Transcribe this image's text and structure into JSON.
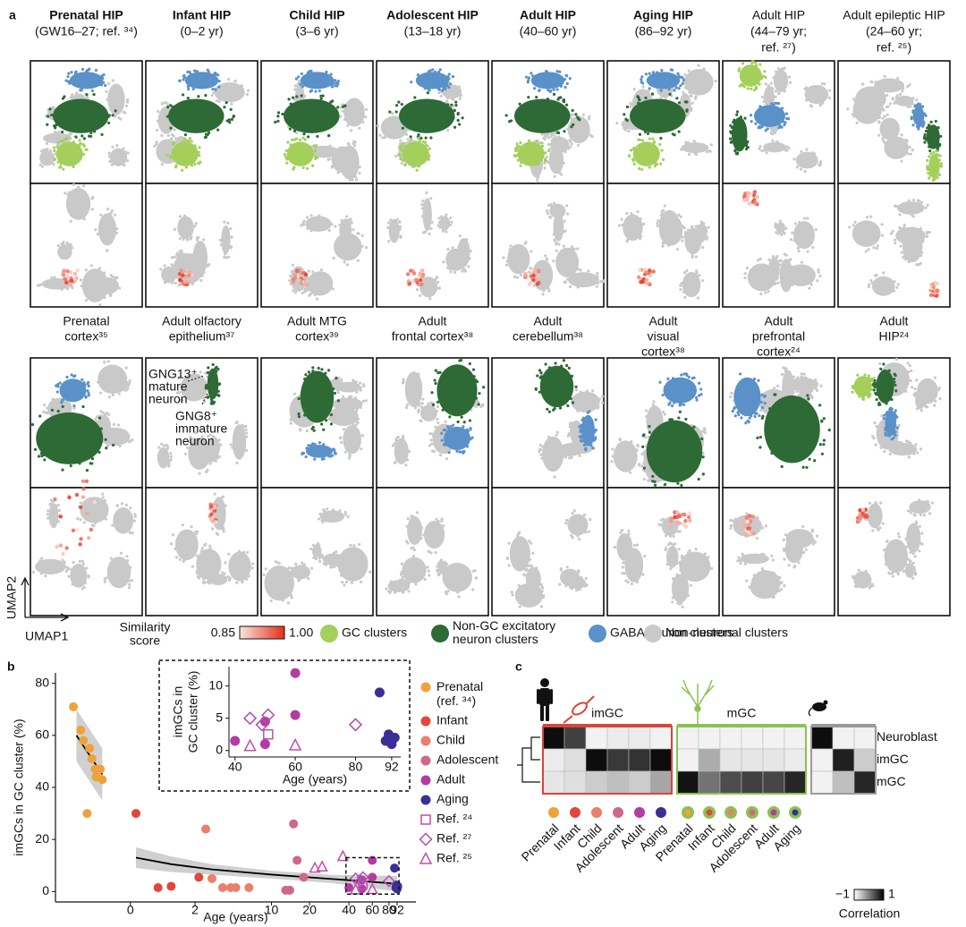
{
  "panel_labels": [
    "a",
    "b",
    "c"
  ],
  "panel_a": {
    "top_titles": [
      {
        "lines": [
          "Prenatal HIP",
          "(GW16–27; ref. ³⁴)"
        ],
        "bold": true
      },
      {
        "lines": [
          "Infant HIP",
          "(0–2 yr)"
        ],
        "bold": true
      },
      {
        "lines": [
          "Child HIP",
          "(3–6 yr)"
        ],
        "bold": true
      },
      {
        "lines": [
          "Adolescent HIP",
          "(13–18 yr)"
        ],
        "bold": true
      },
      {
        "lines": [
          "Adult HIP",
          "(40–60 yr)"
        ],
        "bold": true
      },
      {
        "lines": [
          "Aging HIP",
          "(86–92 yr)"
        ],
        "bold": true
      },
      {
        "lines": [
          "Adult HIP",
          "(44–79 yr;",
          "ref. ²⁷)"
        ],
        "bold": false
      },
      {
        "lines": [
          "Adult epileptic HIP",
          "(24–60 yr;",
          "ref. ²⁵)"
        ],
        "bold": false
      }
    ],
    "mid_titles": [
      {
        "lines": [
          "Prenatal",
          "cortex³⁵"
        ]
      },
      {
        "lines": [
          "Adult olfactory",
          "epithelium³⁷"
        ]
      },
      {
        "lines": [
          "Adult MTG",
          "cortex³⁹"
        ]
      },
      {
        "lines": [
          "Adult",
          "frontal cortex³⁸"
        ]
      },
      {
        "lines": [
          "Adult",
          "cerebellum³⁸"
        ]
      },
      {
        "lines": [
          "Adult",
          "visual",
          "cortex³⁸"
        ]
      },
      {
        "lines": [
          "Adult",
          "prefrontal",
          "cortex²⁴"
        ]
      },
      {
        "lines": [
          "Adult",
          "HIP²⁴"
        ]
      }
    ],
    "annotations": [
      {
        "lines": [
          "GNG13⁺",
          "mature",
          "neuron"
        ]
      },
      {
        "lines": [
          "GNG8⁺",
          "immature",
          "neuron"
        ]
      }
    ],
    "axis_labels": [
      "UMAP1",
      "UMAP2"
    ],
    "similarity_legend": {
      "title_lines": [
        "Similarity",
        "score"
      ],
      "min": 0.85,
      "max": {
        "value": 1,
        "label": "1.00"
      },
      "colors": [
        "#fbe4dc",
        "#e3301a"
      ]
    },
    "cluster_legend": [
      {
        "label_lines": [
          "GC clusters"
        ],
        "color": "#a4cf5b"
      },
      {
        "label_lines": [
          "Non-GC excitatory",
          "neuron clusters"
        ],
        "color": "#2d6a35"
      },
      {
        "label_lines": [
          "GABA neuron clusters"
        ],
        "color": "#5a91c9"
      },
      {
        "label_lines": [
          "Non-neuronal clusters"
        ],
        "color": "#c9c9c9"
      }
    ]
  },
  "chart_data": [
    {
      "type": "scatter",
      "xlabel": "Age (years)",
      "ylabel": "imGCs in GC cluster (%)",
      "xscale": "log1p",
      "xlim": [
        -0.72,
        127
      ],
      "xticks": [
        0,
        2,
        10,
        20,
        40,
        60,
        80,
        92
      ],
      "ylim": [
        -4,
        84
      ],
      "yticks": [
        0,
        20,
        40,
        60,
        80
      ],
      "series": [
        {
          "name": "Prenatal (ref. ³⁴)",
          "color": "#f0a13a",
          "marker": "circle",
          "x": [
            -0.62,
            -0.57,
            -0.55,
            -0.5,
            -0.48,
            -0.45,
            -0.44,
            -0.4,
            -0.38,
            -0.52
          ],
          "values": [
            71,
            62,
            58,
            55,
            51,
            47,
            44,
            47,
            43,
            30
          ]
        },
        {
          "name": "Infant",
          "color": "#e3453a",
          "marker": "circle",
          "x": [
            0.1,
            0.6,
            1,
            2.2
          ],
          "values": [
            30,
            1.5,
            2,
            5.5
          ]
        },
        {
          "name": "Child",
          "color": "#ea7f6b",
          "marker": "circle",
          "x": [
            2.6,
            3,
            3.8,
            4.5,
            5,
            6.5
          ],
          "values": [
            24,
            5,
            1.5,
            1.5,
            1.5,
            1.5
          ]
        },
        {
          "name": "Adolescent",
          "color": "#d0678a",
          "marker": "circle",
          "x": [
            13,
            14,
            15,
            16,
            18
          ],
          "values": [
            0.5,
            0.5,
            26,
            12,
            5.5
          ]
        },
        {
          "name": "Adult",
          "color": "#b43aa4",
          "marker": "circle",
          "x": [
            40,
            50,
            50,
            60,
            60
          ],
          "values": [
            1.5,
            1,
            4.5,
            12,
            5.5
          ]
        },
        {
          "name": "Aging",
          "color": "#3a2f95",
          "marker": "circle",
          "x": [
            88,
            90,
            91,
            92,
            93
          ],
          "values": [
            9,
            1.5,
            2.5,
            1,
            2
          ]
        },
        {
          "name": "Ref. ²⁴",
          "color": "#c24fa8",
          "marker": "square",
          "x": [
            51
          ],
          "values": [
            2.5
          ]
        },
        {
          "name": "Ref. ²⁷",
          "color": "#b04bb0",
          "marker": "diamond",
          "x": [
            45,
            49,
            51,
            80
          ],
          "values": [
            5,
            4,
            5.5,
            4
          ]
        },
        {
          "name": "Ref. ²⁵",
          "color": "#c24fa8",
          "marker": "triangle",
          "x": [
            22,
            25,
            36,
            45,
            60
          ],
          "values": [
            9,
            9.5,
            13.5,
            0.7,
            0.8
          ]
        }
      ],
      "fits": [
        {
          "x": [
            -0.6,
            -0.38
          ],
          "y": [
            60,
            45
          ],
          "lower": [
            50,
            35
          ],
          "upper": [
            70,
            55
          ]
        },
        {
          "x": [
            0.1,
            1,
            3,
            10,
            30,
            92
          ],
          "y": [
            13,
            10.5,
            8.5,
            6.5,
            4.8,
            3
          ],
          "lower": [
            9,
            7.5,
            6.5,
            5,
            3.2,
            0
          ],
          "upper": [
            17,
            13.5,
            10.5,
            8,
            6.4,
            6
          ]
        }
      ],
      "fit_color": "#000000",
      "band_color": "#c4c4c4",
      "inset": {
        "xlabel": "Age (years)",
        "ylabel_lines": [
          "imGCs in",
          "GC cluster (%)"
        ],
        "xlim": [
          38,
          95
        ],
        "xticks": [
          40,
          60,
          80,
          92
        ],
        "ylim": [
          -1,
          13
        ],
        "yticks": [
          0,
          5,
          10
        ]
      }
    },
    {
      "type": "heatmap",
      "groups": [
        {
          "label": "imGC",
          "start": 0,
          "end": 5,
          "color": "#d9453a"
        },
        {
          "label": "mGC",
          "start": 6,
          "end": 11,
          "color": "#8cc152"
        },
        {
          "start": 12,
          "end": 14,
          "color": "#9a9a9a"
        }
      ],
      "categories": [
        "Prenatal",
        "Infant",
        "Child",
        "Adolescent",
        "Adult",
        "Aging",
        "Prenatal",
        "Infant",
        "Child",
        "Adolescent",
        "Adult",
        "Aging",
        null,
        null,
        null
      ],
      "column_colors": [
        "#f0a13a",
        "#e3453a",
        "#ea7f6b",
        "#d0678a",
        "#b43aa4",
        "#3a2f95",
        "#f0a13a",
        "#e3453a",
        "#ea7f6b",
        "#d0678a",
        "#b43aa4",
        "#3a2f95"
      ],
      "rows": [
        "Neuroblast",
        "imGC",
        "mGC"
      ],
      "values": [
        [
          0.9,
          0.5,
          -0.9,
          -0.85,
          -0.85,
          -0.9,
          -0.9,
          -0.9,
          -0.9,
          -0.9,
          -0.9,
          -0.9,
          0.9,
          -0.9,
          -0.9
        ],
        [
          -0.85,
          -0.75,
          0.9,
          0.55,
          0.6,
          0.9,
          -0.9,
          -0.35,
          -0.8,
          -0.8,
          -0.8,
          -0.85,
          -0.9,
          0.75,
          -0.6
        ],
        [
          -0.8,
          -0.75,
          -0.6,
          -0.5,
          -0.6,
          -0.3,
          0.85,
          0.1,
          0.4,
          0.5,
          0.45,
          0.7,
          -0.9,
          -0.5,
          0.7
        ]
      ],
      "clim": [
        -1,
        1
      ],
      "cticks": [
        {
          "value": -1,
          "label": "−1"
        },
        1
      ],
      "clabel": "Correlation"
    }
  ]
}
